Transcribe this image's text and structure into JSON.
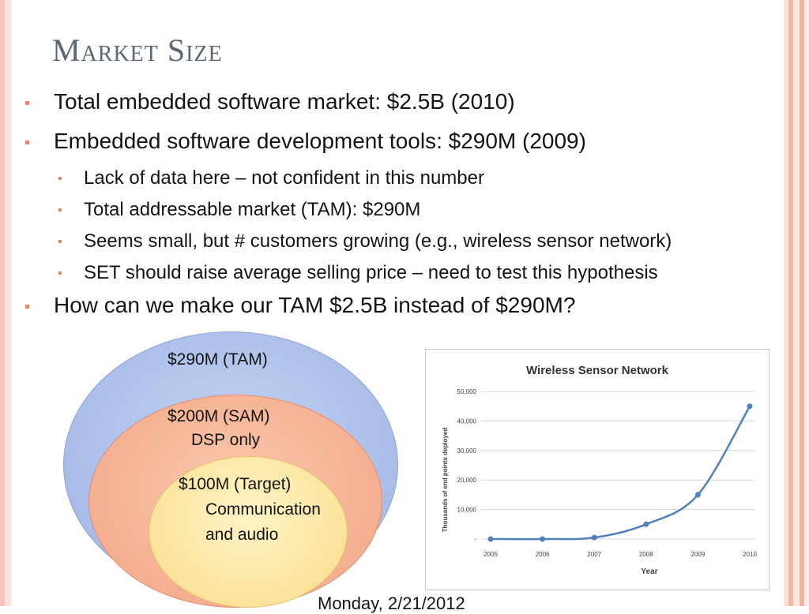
{
  "slide": {
    "title": "Market Size",
    "bullets": [
      {
        "level": 1,
        "text": "Total embedded software market: $2.5B (2010)"
      },
      {
        "level": 1,
        "text": "Embedded software development tools: $290M (2009)"
      },
      {
        "level": 2,
        "text": "Lack of data here – not confident in this number"
      },
      {
        "level": 2,
        "text": "Total addressable market (TAM): $290M"
      },
      {
        "level": 2,
        "text": "Seems small, but # customers growing (e.g., wireless sensor network)"
      },
      {
        "level": 2,
        "text": "SET should raise average selling price – need to test this hypothesis"
      },
      {
        "level": 1,
        "text": "How can we make our TAM $2.5B instead of $290M?"
      }
    ],
    "footer": "Monday, 2/21/2012",
    "colors": {
      "title": "#5a6774",
      "bullet": "#e5876b",
      "series": "#4f81bd"
    }
  },
  "venn": {
    "tam_label": "$290M (TAM)",
    "sam_label_1": "$200M (SAM)",
    "sam_label_2": "DSP only",
    "target_label_1": "$100M (Target)",
    "target_label_2": "Communication",
    "target_label_3": "and audio",
    "colors": {
      "tam": "#a9bde9",
      "sam": "#f4ad8e",
      "target": "#fbe39c"
    }
  },
  "chart_data": {
    "type": "line",
    "title": "Wireless Sensor Network",
    "xlabel": "Year",
    "ylabel": "Thousands of end points deployed",
    "categories": [
      "2005",
      "2006",
      "2007",
      "2008",
      "2009",
      "2010"
    ],
    "values": [
      0,
      0,
      500,
      5000,
      15000,
      45000
    ],
    "yticks": [
      "50,000",
      "40,000",
      "30,000",
      "20,000",
      "10,000",
      "-"
    ],
    "ylim": [
      0,
      50000
    ],
    "grid": true,
    "legend": "none"
  }
}
